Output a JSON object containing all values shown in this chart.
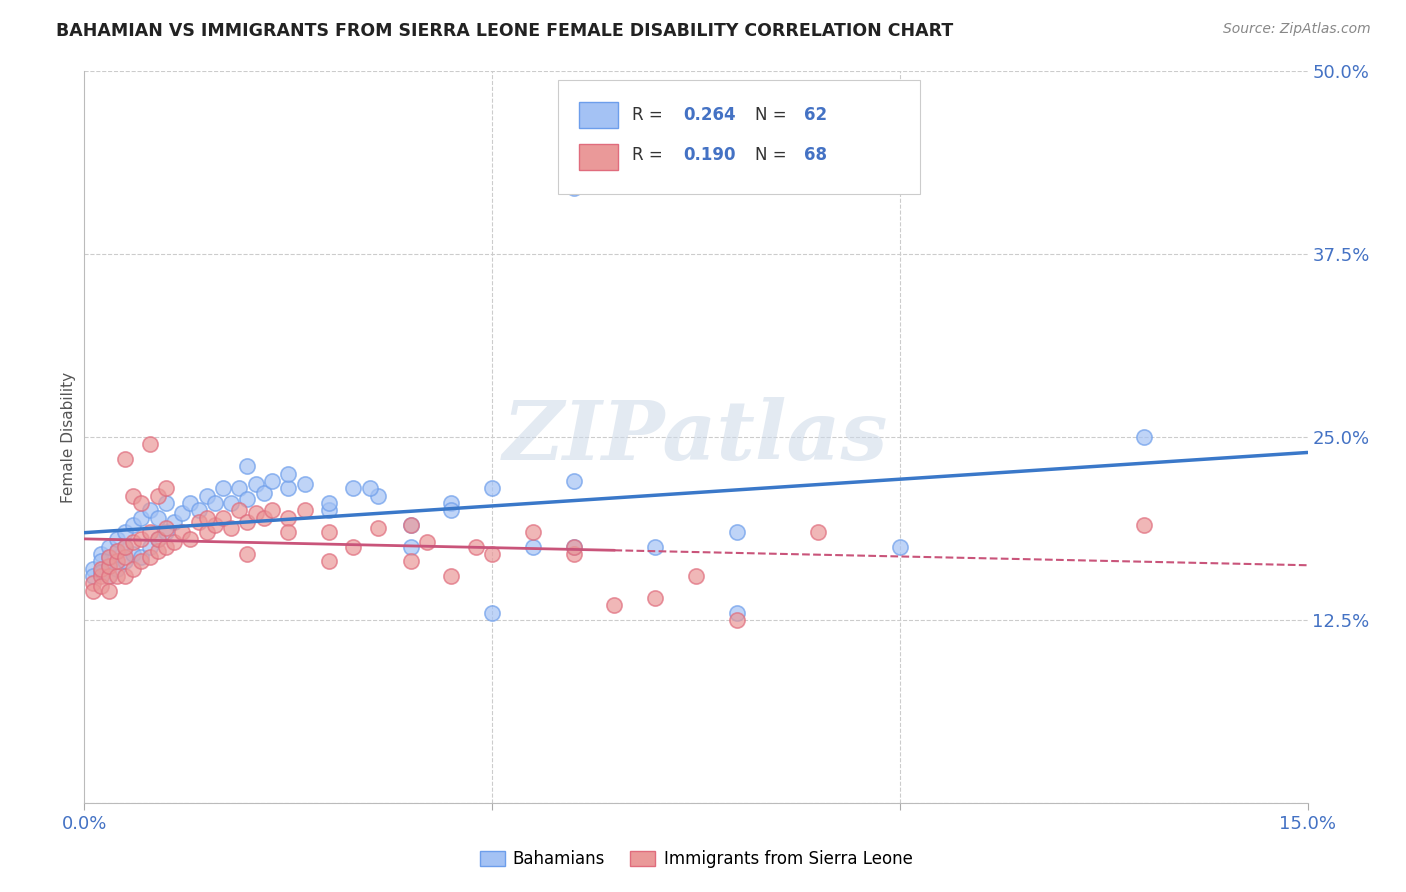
{
  "title": "BAHAMIAN VS IMMIGRANTS FROM SIERRA LEONE FEMALE DISABILITY CORRELATION CHART",
  "source": "Source: ZipAtlas.com",
  "ylabel": "Female Disability",
  "xlim": [
    0.0,
    0.15
  ],
  "ylim": [
    0.0,
    0.5
  ],
  "xtick_positions": [
    0.0,
    0.05,
    0.1,
    0.15
  ],
  "xtick_labels": [
    "0.0%",
    "",
    "",
    "15.0%"
  ],
  "ytick_positions": [
    0.0,
    0.125,
    0.25,
    0.375,
    0.5
  ],
  "ytick_labels": [
    "",
    "12.5%",
    "25.0%",
    "37.5%",
    "50.0%"
  ],
  "bahamian_color": "#a4c2f4",
  "bahamian_edge_color": "#6d9eeb",
  "sierra_leone_color": "#ea9999",
  "sierra_leone_edge_color": "#e06c7d",
  "bahamian_line_color": "#3a78c9",
  "sierra_leone_solid_color": "#c9547a",
  "sierra_leone_dash_color": "#c9547a",
  "R_bahamian": 0.264,
  "N_bahamian": 62,
  "R_sierra_leone": 0.19,
  "N_sierra_leone": 68,
  "watermark": "ZIPatlas",
  "legend_labels": [
    "Bahamians",
    "Immigrants from Sierra Leone"
  ],
  "bahamian_points_x": [
    0.001,
    0.001,
    0.002,
    0.002,
    0.002,
    0.003,
    0.003,
    0.003,
    0.003,
    0.004,
    0.004,
    0.004,
    0.005,
    0.005,
    0.005,
    0.006,
    0.006,
    0.007,
    0.007,
    0.008,
    0.008,
    0.009,
    0.009,
    0.01,
    0.01,
    0.011,
    0.012,
    0.013,
    0.014,
    0.015,
    0.016,
    0.017,
    0.018,
    0.019,
    0.02,
    0.021,
    0.022,
    0.023,
    0.025,
    0.027,
    0.03,
    0.033,
    0.036,
    0.04,
    0.045,
    0.05,
    0.055,
    0.06,
    0.07,
    0.08,
    0.02,
    0.025,
    0.03,
    0.035,
    0.04,
    0.045,
    0.05,
    0.06,
    0.08,
    0.1,
    0.06,
    0.13
  ],
  "bahamian_points_y": [
    0.16,
    0.155,
    0.17,
    0.165,
    0.158,
    0.162,
    0.155,
    0.168,
    0.175,
    0.16,
    0.172,
    0.18,
    0.165,
    0.175,
    0.185,
    0.17,
    0.19,
    0.168,
    0.195,
    0.175,
    0.2,
    0.18,
    0.195,
    0.185,
    0.205,
    0.192,
    0.198,
    0.205,
    0.2,
    0.21,
    0.205,
    0.215,
    0.205,
    0.215,
    0.208,
    0.218,
    0.212,
    0.22,
    0.215,
    0.218,
    0.2,
    0.215,
    0.21,
    0.19,
    0.205,
    0.215,
    0.175,
    0.22,
    0.175,
    0.185,
    0.23,
    0.225,
    0.205,
    0.215,
    0.175,
    0.2,
    0.13,
    0.175,
    0.13,
    0.175,
    0.42,
    0.25
  ],
  "sierra_leone_points_x": [
    0.001,
    0.001,
    0.002,
    0.002,
    0.002,
    0.003,
    0.003,
    0.003,
    0.003,
    0.004,
    0.004,
    0.004,
    0.005,
    0.005,
    0.005,
    0.006,
    0.006,
    0.007,
    0.007,
    0.008,
    0.008,
    0.009,
    0.009,
    0.01,
    0.01,
    0.011,
    0.012,
    0.013,
    0.014,
    0.015,
    0.016,
    0.017,
    0.018,
    0.019,
    0.02,
    0.021,
    0.022,
    0.023,
    0.025,
    0.027,
    0.03,
    0.033,
    0.036,
    0.04,
    0.042,
    0.045,
    0.048,
    0.05,
    0.055,
    0.06,
    0.065,
    0.07,
    0.075,
    0.08,
    0.005,
    0.006,
    0.007,
    0.008,
    0.009,
    0.01,
    0.015,
    0.02,
    0.025,
    0.03,
    0.04,
    0.06,
    0.09,
    0.13
  ],
  "sierra_leone_points_y": [
    0.15,
    0.145,
    0.155,
    0.148,
    0.16,
    0.155,
    0.162,
    0.145,
    0.168,
    0.155,
    0.165,
    0.172,
    0.155,
    0.168,
    0.175,
    0.16,
    0.178,
    0.165,
    0.18,
    0.168,
    0.185,
    0.172,
    0.18,
    0.175,
    0.188,
    0.178,
    0.185,
    0.18,
    0.192,
    0.185,
    0.19,
    0.195,
    0.188,
    0.2,
    0.192,
    0.198,
    0.195,
    0.2,
    0.195,
    0.2,
    0.185,
    0.175,
    0.188,
    0.165,
    0.178,
    0.155,
    0.175,
    0.17,
    0.185,
    0.17,
    0.135,
    0.14,
    0.155,
    0.125,
    0.235,
    0.21,
    0.205,
    0.245,
    0.21,
    0.215,
    0.195,
    0.17,
    0.185,
    0.165,
    0.19,
    0.175,
    0.185,
    0.19
  ]
}
